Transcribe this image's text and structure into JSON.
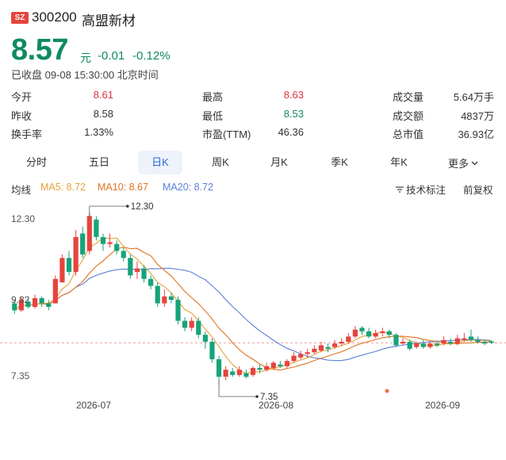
{
  "header": {
    "exchange_badge": "SZ",
    "code": "300200",
    "name": "高盟新材",
    "price": "8.57",
    "unit": "元",
    "change": "-0.01",
    "change_pct": "-0.12%",
    "status": "已收盘 09-08 15:30:00 北京时间"
  },
  "stats": {
    "col1": [
      {
        "label": "今开",
        "value": "8.61",
        "color": "red"
      },
      {
        "label": "昨收",
        "value": "8.58",
        "color": "normal"
      },
      {
        "label": "换手率",
        "value": "1.33%",
        "color": "normal"
      }
    ],
    "col2": [
      {
        "label": "最高",
        "value": "8.63",
        "color": "red"
      },
      {
        "label": "最低",
        "value": "8.53",
        "color": "green"
      },
      {
        "label": "市盈(TTM)",
        "value": "46.36",
        "color": "normal"
      }
    ],
    "col3": [
      {
        "label": "成交量",
        "value": "5.64万手",
        "color": "normal"
      },
      {
        "label": "成交额",
        "value": "4837万",
        "color": "normal"
      },
      {
        "label": "总市值",
        "value": "36.93亿",
        "color": "normal"
      }
    ]
  },
  "tabs": [
    "分时",
    "五日",
    "日K",
    "周K",
    "月K",
    "季K",
    "年K",
    "更多"
  ],
  "active_tab": "日K",
  "ma": {
    "label": "均线",
    "ma5": "MA5: 8.72",
    "ma10": "MA10: 8.67",
    "ma20": "MA20: 8.72",
    "tech_label": "技术标注",
    "adjust_label": "前复权"
  },
  "colors": {
    "up": "#e6443d",
    "down": "#16a37a",
    "ma5": "#e8a13c",
    "ma10": "#e0721f",
    "ma20": "#5b7fd6",
    "accent": "#2b67d8"
  },
  "chart_data": {
    "type": "candlestick",
    "y_labels": [
      "12.30",
      "9.82",
      "7.35"
    ],
    "ylim": [
      7.35,
      12.3
    ],
    "x_labels": [
      "2026-07",
      "2026-08",
      "2026-09"
    ],
    "annotations": {
      "high": "12.30",
      "low": "7.35"
    },
    "last_close": 8.57,
    "candles": [
      [
        9.7,
        9.5,
        9.8,
        9.4
      ],
      [
        9.5,
        9.8,
        9.9,
        9.45
      ],
      [
        9.75,
        9.6,
        9.85,
        9.55
      ],
      [
        9.6,
        9.85,
        9.95,
        9.55
      ],
      [
        9.85,
        9.7,
        9.9,
        9.6
      ],
      [
        9.7,
        9.6,
        9.8,
        9.5
      ],
      [
        9.7,
        10.4,
        10.5,
        9.7
      ],
      [
        10.3,
        11.0,
        11.1,
        10.3
      ],
      [
        11.0,
        10.6,
        11.2,
        10.5
      ],
      [
        10.6,
        11.6,
        11.8,
        10.5
      ],
      [
        11.7,
        11.1,
        11.9,
        11.0
      ],
      [
        11.2,
        12.2,
        12.3,
        11.1
      ],
      [
        12.1,
        11.6,
        12.2,
        11.5
      ],
      [
        11.6,
        11.4,
        11.7,
        11.2
      ],
      [
        11.4,
        11.45,
        11.7,
        11.3
      ],
      [
        11.4,
        11.2,
        11.5,
        11.1
      ],
      [
        11.2,
        11.0,
        11.3,
        10.9
      ],
      [
        11.0,
        10.5,
        11.1,
        10.4
      ],
      [
        10.6,
        10.7,
        10.9,
        10.4
      ],
      [
        10.7,
        10.4,
        10.8,
        10.3
      ],
      [
        10.4,
        10.2,
        10.5,
        10.1
      ],
      [
        10.2,
        9.7,
        10.3,
        9.6
      ],
      [
        9.7,
        9.9,
        10.1,
        9.6
      ],
      [
        9.9,
        9.8,
        10.0,
        9.7
      ],
      [
        9.8,
        9.2,
        9.9,
        9.1
      ],
      [
        9.2,
        9.0,
        9.3,
        8.9
      ],
      [
        9.0,
        9.2,
        9.3,
        8.9
      ],
      [
        9.2,
        8.8,
        9.3,
        8.7
      ],
      [
        8.8,
        8.6,
        8.9,
        8.4
      ],
      [
        8.6,
        8.1,
        8.7,
        8.0
      ],
      [
        8.1,
        7.6,
        8.2,
        7.35
      ],
      [
        7.6,
        7.8,
        7.9,
        7.5
      ],
      [
        7.75,
        7.65,
        7.85,
        7.6
      ],
      [
        7.65,
        7.8,
        7.9,
        7.6
      ],
      [
        7.7,
        7.6,
        7.8,
        7.55
      ],
      [
        7.65,
        7.85,
        7.9,
        7.6
      ],
      [
        7.85,
        7.8,
        7.95,
        7.7
      ],
      [
        7.8,
        7.9,
        8.0,
        7.75
      ],
      [
        7.85,
        8.0,
        8.05,
        7.8
      ],
      [
        7.95,
        7.9,
        8.05,
        7.85
      ],
      [
        7.9,
        8.05,
        8.1,
        7.85
      ],
      [
        8.05,
        8.2,
        8.3,
        8.0
      ],
      [
        8.15,
        8.25,
        8.35,
        8.1
      ],
      [
        8.25,
        8.3,
        8.4,
        8.15
      ],
      [
        8.3,
        8.4,
        8.5,
        8.25
      ],
      [
        8.35,
        8.5,
        8.6,
        8.3
      ],
      [
        8.45,
        8.4,
        8.55,
        8.3
      ],
      [
        8.45,
        8.55,
        8.65,
        8.4
      ],
      [
        8.55,
        8.6,
        8.7,
        8.5
      ],
      [
        8.6,
        8.75,
        8.85,
        8.55
      ],
      [
        8.75,
        8.95,
        9.05,
        8.7
      ],
      [
        9.0,
        8.9,
        9.05,
        8.8
      ],
      [
        8.9,
        8.75,
        9.0,
        8.7
      ],
      [
        8.75,
        8.85,
        8.95,
        8.7
      ],
      [
        8.85,
        8.9,
        9.0,
        8.75
      ],
      [
        8.9,
        8.8,
        8.95,
        8.7
      ],
      [
        8.8,
        8.5,
        8.85,
        8.45
      ],
      [
        8.55,
        8.6,
        8.7,
        8.5
      ],
      [
        8.6,
        8.4,
        8.65,
        8.35
      ],
      [
        8.45,
        8.55,
        8.6,
        8.4
      ],
      [
        8.55,
        8.45,
        8.65,
        8.4
      ],
      [
        8.45,
        8.55,
        8.6,
        8.4
      ],
      [
        8.55,
        8.5,
        8.65,
        8.45
      ],
      [
        8.55,
        8.65,
        8.75,
        8.5
      ],
      [
        8.6,
        8.55,
        8.7,
        8.5
      ],
      [
        8.55,
        8.7,
        8.8,
        8.5
      ],
      [
        8.65,
        8.7,
        8.85,
        8.6
      ],
      [
        8.75,
        8.65,
        8.95,
        8.6
      ],
      [
        8.65,
        8.6,
        8.75,
        8.55
      ],
      [
        8.6,
        8.55,
        8.65,
        8.5
      ],
      [
        8.61,
        8.57,
        8.63,
        8.53
      ]
    ]
  }
}
